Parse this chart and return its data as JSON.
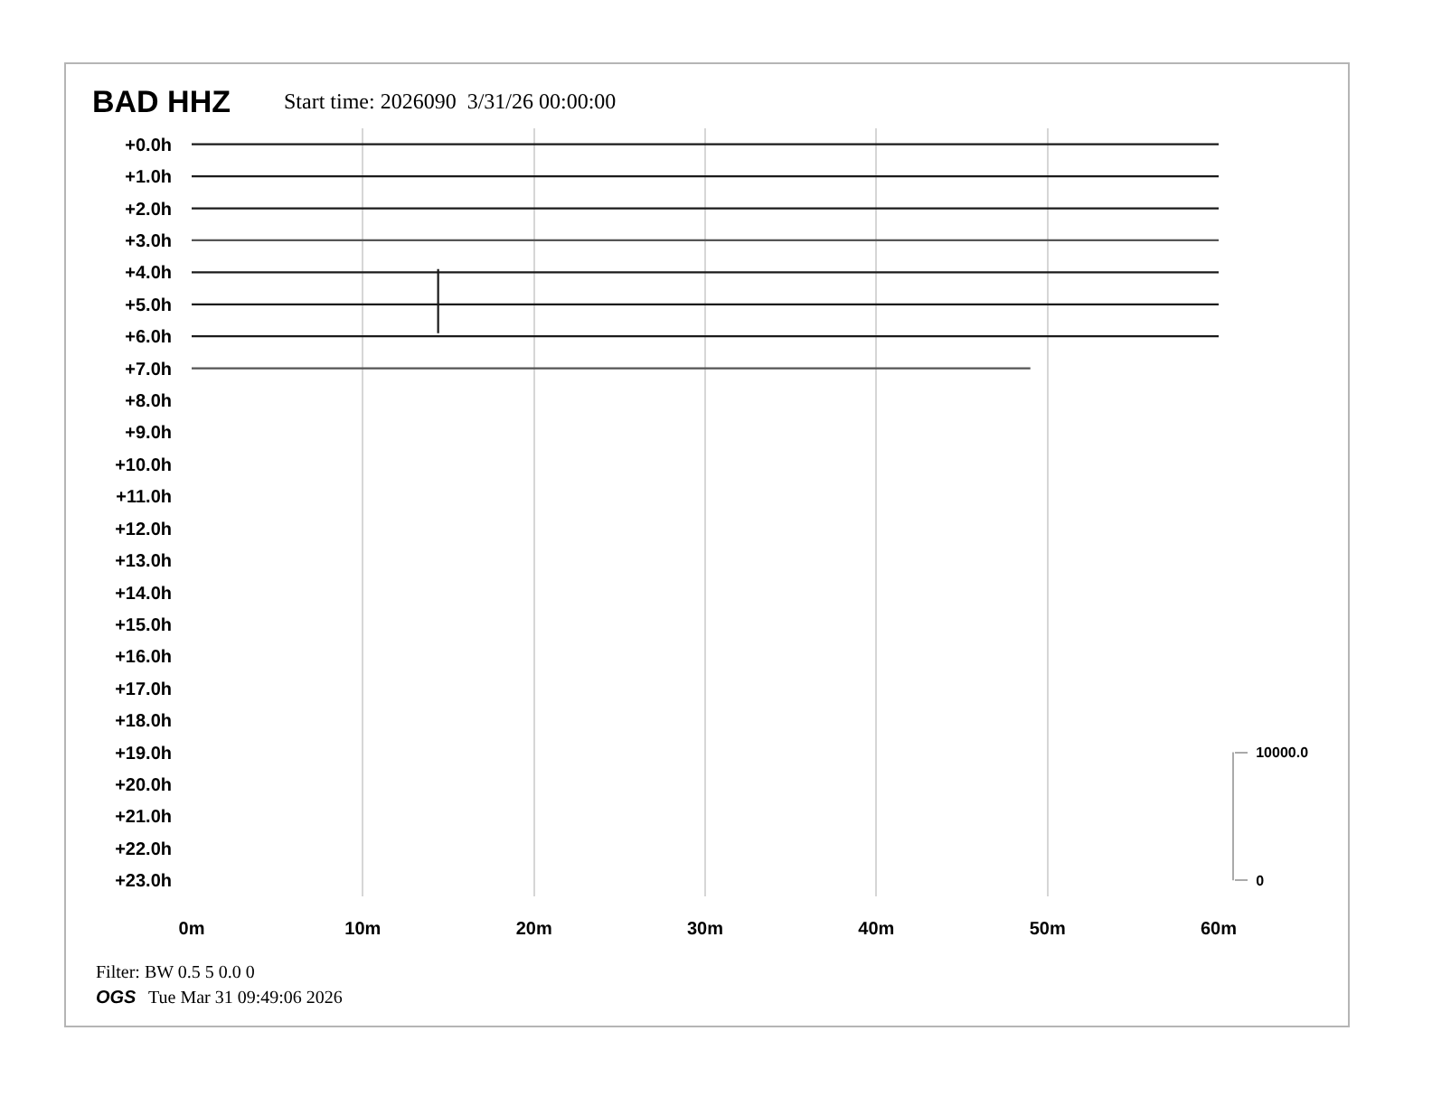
{
  "chart_data": {
    "type": "line",
    "title": "BAD HHZ",
    "subtitle": "Start time: 2026090  3/31/26 00:00:00",
    "series": [
      {
        "color": "#1a1a1a",
        "x": [
          0,
          60
        ],
        "values": [
          0,
          0
        ]
      },
      {
        "color": "#1a1a1a",
        "x": [
          0,
          60
        ],
        "values": [
          1,
          1
        ]
      },
      {
        "color": "#1a1a1a",
        "x": [
          0,
          60
        ],
        "values": [
          2,
          2
        ]
      },
      {
        "color": "#555555",
        "x": [
          0,
          60
        ],
        "values": [
          3,
          3
        ]
      },
      {
        "color": "#1a1a1a",
        "x": [
          0,
          60
        ],
        "values": [
          4,
          4
        ]
      },
      {
        "color": "#1a1a1a",
        "x": [
          0,
          14.4,
          14.4,
          14.4,
          14.4,
          60
        ],
        "values": [
          5,
          5,
          3.9,
          5.9,
          5,
          5
        ]
      },
      {
        "color": "#1a1a1a",
        "x": [
          0,
          60
        ],
        "values": [
          6,
          6
        ]
      },
      {
        "color": "#555555",
        "x": [
          0,
          49
        ],
        "values": [
          7,
          7
        ]
      }
    ],
    "xlim": [
      0,
      60
    ],
    "xticks": [
      {
        "value": 0,
        "label": "0m"
      },
      {
        "value": 10,
        "label": "10m"
      },
      {
        "value": 20,
        "label": "20m"
      },
      {
        "value": 30,
        "label": "30m"
      },
      {
        "value": 40,
        "label": "40m"
      },
      {
        "value": 50,
        "label": "50m"
      },
      {
        "value": 60,
        "label": "60m"
      }
    ],
    "ylim": [
      23.5,
      -0.5
    ],
    "yticks": [
      {
        "value": 0,
        "label": "+0.0h"
      },
      {
        "value": 1,
        "label": "+1.0h"
      },
      {
        "value": 2,
        "label": "+2.0h"
      },
      {
        "value": 3,
        "label": "+3.0h"
      },
      {
        "value": 4,
        "label": "+4.0h"
      },
      {
        "value": 5,
        "label": "+5.0h"
      },
      {
        "value": 6,
        "label": "+6.0h"
      },
      {
        "value": 7,
        "label": "+7.0h"
      },
      {
        "value": 8,
        "label": "+8.0h"
      },
      {
        "value": 9,
        "label": "+9.0h"
      },
      {
        "value": 10,
        "label": "+10.0h"
      },
      {
        "value": 11,
        "label": "+11.0h"
      },
      {
        "value": 12,
        "label": "+12.0h"
      },
      {
        "value": 13,
        "label": "+13.0h"
      },
      {
        "value": 14,
        "label": "+14.0h"
      },
      {
        "value": 15,
        "label": "+15.0h"
      },
      {
        "value": 16,
        "label": "+16.0h"
      },
      {
        "value": 17,
        "label": "+17.0h"
      },
      {
        "value": 18,
        "label": "+18.0h"
      },
      {
        "value": 19,
        "label": "+19.0h"
      },
      {
        "value": 20,
        "label": "+20.0h"
      },
      {
        "value": 21,
        "label": "+21.0h"
      },
      {
        "value": 22,
        "label": "+22.0h"
      },
      {
        "value": 23,
        "label": "+23.0h"
      }
    ],
    "y2lim": [
      -1250,
      58750
    ],
    "y2ticks": [
      0,
      {
        "value": 10000,
        "label": "10000.0"
      }
    ],
    "grid": "x",
    "annotations": [
      "Filter: BW 0.5 5 0.0 0",
      "OGS",
      "Tue Mar 31 09:49:06 2026"
    ]
  }
}
